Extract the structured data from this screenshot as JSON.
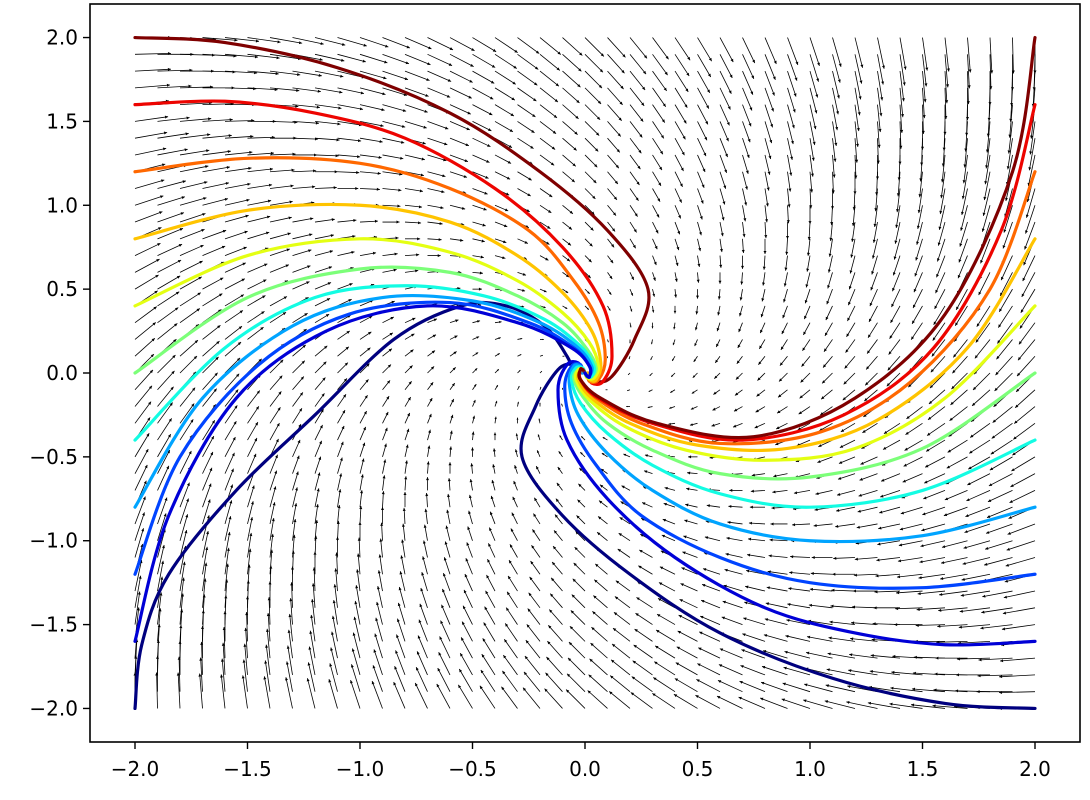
{
  "chart_data": {
    "type": "line",
    "subtype": "vector-field-with-trajectories",
    "title": "",
    "xlabel": "",
    "ylabel": "",
    "xlim": [
      -2.2,
      2.2
    ],
    "ylim": [
      -2.2,
      2.2
    ],
    "x_ticks": [
      -2.0,
      -1.5,
      -1.0,
      -0.5,
      0.0,
      0.5,
      1.0,
      1.5,
      2.0
    ],
    "y_ticks": [
      -2.0,
      -1.5,
      -1.0,
      -0.5,
      0.0,
      0.5,
      1.0,
      1.5,
      2.0
    ],
    "x_tick_labels": [
      "−2.0",
      "−1.5",
      "−1.0",
      "−0.5",
      "0.0",
      "0.5",
      "1.0",
      "1.5",
      "2.0"
    ],
    "y_tick_labels": [
      "−2.0",
      "−1.5",
      "−1.0",
      "−0.5",
      "0.0",
      "0.5",
      "1.0",
      "1.5",
      "2.0"
    ],
    "grid": false,
    "legend": "none",
    "colormap": "jet",
    "quiver": {
      "x_range": [
        -2.0,
        2.0
      ],
      "y_range": [
        -2.0,
        2.0
      ],
      "grid_points": 41,
      "color": "#000000",
      "description_of_field": "spiral sink toward origin, clockwise rotation"
    },
    "series": [
      {
        "start": [
          -2.0,
          -2.0
        ],
        "color": "#00007f",
        "points": [
          [
            -2.0,
            -2.0
          ],
          [
            -1.97,
            -1.62
          ],
          [
            -1.85,
            -1.2
          ],
          [
            -1.55,
            -0.7
          ],
          [
            -1.2,
            -0.25
          ],
          [
            -0.85,
            0.2
          ],
          [
            -0.55,
            0.4
          ],
          [
            -0.35,
            0.4
          ],
          [
            -0.18,
            0.28
          ],
          [
            -0.08,
            0.1
          ],
          [
            -0.05,
            0.0
          ]
        ]
      },
      {
        "start": [
          2.0,
          -2.0
        ],
        "color": "#00007f",
        "points": [
          [
            2.0,
            -2.0
          ],
          [
            1.6,
            -1.97
          ],
          [
            1.1,
            -1.82
          ],
          [
            0.6,
            -1.55
          ],
          [
            0.2,
            -1.2
          ],
          [
            -0.1,
            -0.85
          ],
          [
            -0.28,
            -0.5
          ],
          [
            -0.22,
            -0.2
          ],
          [
            -0.12,
            0.02
          ],
          [
            -0.05,
            0.05
          ],
          [
            -0.02,
            0.0
          ]
        ]
      },
      {
        "start": [
          2.0,
          -1.6
        ],
        "color": "#0000d6",
        "points": [
          [
            2.0,
            -1.6
          ],
          [
            1.6,
            -1.62
          ],
          [
            1.2,
            -1.55
          ],
          [
            0.8,
            -1.4
          ],
          [
            0.4,
            -1.1
          ],
          [
            0.1,
            -0.75
          ],
          [
            -0.08,
            -0.4
          ],
          [
            -0.12,
            -0.1
          ],
          [
            -0.08,
            0.05
          ],
          [
            -0.03,
            0.06
          ],
          [
            -0.01,
            0.0
          ]
        ]
      },
      {
        "start": [
          2.0,
          -1.2
        ],
        "color": "#0044ff",
        "points": [
          [
            2.0,
            -1.2
          ],
          [
            1.5,
            -1.28
          ],
          [
            1.0,
            -1.25
          ],
          [
            0.6,
            -1.1
          ],
          [
            0.25,
            -0.85
          ],
          [
            0.05,
            -0.55
          ],
          [
            -0.06,
            -0.3
          ],
          [
            -0.09,
            -0.08
          ],
          [
            -0.06,
            0.04
          ],
          [
            -0.02,
            0.05
          ],
          [
            -0.01,
            0.0
          ]
        ]
      },
      {
        "start": [
          2.0,
          -0.8
        ],
        "color": "#00a4ff",
        "points": [
          [
            2.0,
            -0.8
          ],
          [
            1.5,
            -0.97
          ],
          [
            1.0,
            -1.0
          ],
          [
            0.6,
            -0.9
          ],
          [
            0.3,
            -0.7
          ],
          [
            0.1,
            -0.48
          ],
          [
            -0.03,
            -0.25
          ],
          [
            -0.07,
            -0.06
          ],
          [
            -0.05,
            0.04
          ],
          [
            -0.02,
            0.04
          ],
          [
            -0.01,
            0.0
          ]
        ]
      },
      {
        "start": [
          2.0,
          -0.4
        ],
        "color": "#13fce3",
        "points": [
          [
            2.0,
            -0.4
          ],
          [
            1.5,
            -0.7
          ],
          [
            1.0,
            -0.8
          ],
          [
            0.6,
            -0.72
          ],
          [
            0.3,
            -0.55
          ],
          [
            0.1,
            -0.36
          ],
          [
            -0.02,
            -0.18
          ],
          [
            -0.06,
            -0.04
          ],
          [
            -0.04,
            0.03
          ],
          [
            -0.01,
            0.03
          ],
          [
            0.0,
            0.0
          ]
        ]
      },
      {
        "start": [
          2.0,
          0.0
        ],
        "color": "#7cff79",
        "points": [
          [
            2.0,
            0.0
          ],
          [
            1.5,
            -0.45
          ],
          [
            1.0,
            -0.62
          ],
          [
            0.6,
            -0.6
          ],
          [
            0.3,
            -0.46
          ],
          [
            0.1,
            -0.3
          ],
          [
            -0.01,
            -0.14
          ],
          [
            -0.05,
            -0.03
          ],
          [
            -0.03,
            0.02
          ],
          [
            -0.01,
            0.02
          ],
          [
            0.0,
            0.0
          ]
        ]
      },
      {
        "start": [
          2.0,
          0.4
        ],
        "color": "#e4ff13",
        "points": [
          [
            2.0,
            0.4
          ],
          [
            1.6,
            -0.15
          ],
          [
            1.2,
            -0.45
          ],
          [
            0.8,
            -0.52
          ],
          [
            0.45,
            -0.46
          ],
          [
            0.18,
            -0.32
          ],
          [
            0.02,
            -0.16
          ],
          [
            -0.04,
            -0.04
          ],
          [
            -0.03,
            0.02
          ],
          [
            -0.01,
            0.02
          ],
          [
            0.0,
            0.0
          ]
        ]
      },
      {
        "start": [
          2.0,
          0.8
        ],
        "color": "#ffc400",
        "points": [
          [
            2.0,
            0.8
          ],
          [
            1.7,
            0.15
          ],
          [
            1.3,
            -0.28
          ],
          [
            0.9,
            -0.45
          ],
          [
            0.5,
            -0.43
          ],
          [
            0.2,
            -0.3
          ],
          [
            0.03,
            -0.15
          ],
          [
            -0.03,
            -0.04
          ],
          [
            -0.02,
            0.02
          ],
          [
            -0.01,
            0.02
          ],
          [
            0.0,
            0.0
          ]
        ]
      },
      {
        "start": [
          2.0,
          1.2
        ],
        "color": "#ff6800",
        "points": [
          [
            2.0,
            1.2
          ],
          [
            1.8,
            0.5
          ],
          [
            1.45,
            -0.05
          ],
          [
            1.05,
            -0.35
          ],
          [
            0.6,
            -0.42
          ],
          [
            0.25,
            -0.3
          ],
          [
            0.05,
            -0.15
          ],
          [
            -0.02,
            -0.04
          ],
          [
            -0.02,
            0.02
          ],
          [
            -0.01,
            0.02
          ],
          [
            0.0,
            0.0
          ]
        ]
      },
      {
        "start": [
          2.0,
          1.6
        ],
        "color": "#ed0400",
        "points": [
          [
            2.0,
            1.6
          ],
          [
            1.85,
            0.85
          ],
          [
            1.55,
            0.15
          ],
          [
            1.15,
            -0.25
          ],
          [
            0.7,
            -0.4
          ],
          [
            0.3,
            -0.3
          ],
          [
            0.06,
            -0.15
          ],
          [
            -0.02,
            -0.04
          ],
          [
            -0.02,
            0.02
          ],
          [
            -0.01,
            0.02
          ],
          [
            0.0,
            0.0
          ]
        ]
      },
      {
        "start": [
          2.0,
          2.0
        ],
        "color": "#7f0000",
        "points": [
          [
            2.0,
            2.0
          ],
          [
            1.9,
            1.2
          ],
          [
            1.6,
            0.35
          ],
          [
            1.2,
            -0.15
          ],
          [
            0.75,
            -0.38
          ],
          [
            0.32,
            -0.3
          ],
          [
            0.07,
            -0.15
          ],
          [
            -0.02,
            -0.04
          ],
          [
            -0.02,
            0.02
          ],
          [
            -0.01,
            0.02
          ],
          [
            0.0,
            0.0
          ]
        ]
      },
      {
        "start": [
          -2.0,
          2.0
        ],
        "color": "#7f0000",
        "points": [
          [
            -2.0,
            2.0
          ],
          [
            -1.6,
            1.97
          ],
          [
            -1.1,
            1.82
          ],
          [
            -0.6,
            1.55
          ],
          [
            -0.2,
            1.2
          ],
          [
            0.1,
            0.85
          ],
          [
            0.28,
            0.5
          ],
          [
            0.22,
            0.2
          ],
          [
            0.12,
            -0.02
          ],
          [
            0.05,
            -0.05
          ],
          [
            0.02,
            0.0
          ]
        ]
      },
      {
        "start": [
          -2.0,
          1.6
        ],
        "color": "#ed0400",
        "points": [
          [
            -2.0,
            1.6
          ],
          [
            -1.6,
            1.62
          ],
          [
            -1.2,
            1.55
          ],
          [
            -0.8,
            1.4
          ],
          [
            -0.4,
            1.1
          ],
          [
            -0.1,
            0.75
          ],
          [
            0.08,
            0.4
          ],
          [
            0.12,
            0.1
          ],
          [
            0.08,
            -0.05
          ],
          [
            0.03,
            -0.06
          ],
          [
            0.01,
            0.0
          ]
        ]
      },
      {
        "start": [
          -2.0,
          1.2
        ],
        "color": "#ff6800",
        "points": [
          [
            -2.0,
            1.2
          ],
          [
            -1.5,
            1.28
          ],
          [
            -1.0,
            1.25
          ],
          [
            -0.6,
            1.1
          ],
          [
            -0.25,
            0.85
          ],
          [
            -0.05,
            0.55
          ],
          [
            0.06,
            0.3
          ],
          [
            0.09,
            0.08
          ],
          [
            0.06,
            -0.04
          ],
          [
            0.02,
            -0.05
          ],
          [
            0.01,
            0.0
          ]
        ]
      },
      {
        "start": [
          -2.0,
          0.8
        ],
        "color": "#ffc400",
        "points": [
          [
            -2.0,
            0.8
          ],
          [
            -1.5,
            0.97
          ],
          [
            -1.0,
            1.0
          ],
          [
            -0.6,
            0.9
          ],
          [
            -0.3,
            0.7
          ],
          [
            -0.1,
            0.48
          ],
          [
            0.03,
            0.25
          ],
          [
            0.07,
            0.06
          ],
          [
            0.05,
            -0.04
          ],
          [
            0.02,
            -0.04
          ],
          [
            0.01,
            0.0
          ]
        ]
      },
      {
        "start": [
          -2.0,
          0.4
        ],
        "color": "#e4ff13",
        "points": [
          [
            -2.0,
            0.4
          ],
          [
            -1.5,
            0.7
          ],
          [
            -1.0,
            0.8
          ],
          [
            -0.6,
            0.72
          ],
          [
            -0.3,
            0.55
          ],
          [
            -0.1,
            0.36
          ],
          [
            0.02,
            0.18
          ],
          [
            0.06,
            0.04
          ],
          [
            0.04,
            -0.03
          ],
          [
            0.01,
            -0.03
          ],
          [
            0.0,
            0.0
          ]
        ]
      },
      {
        "start": [
          -2.0,
          0.0
        ],
        "color": "#7cff79",
        "points": [
          [
            -2.0,
            0.0
          ],
          [
            -1.5,
            0.45
          ],
          [
            -1.0,
            0.62
          ],
          [
            -0.6,
            0.6
          ],
          [
            -0.3,
            0.46
          ],
          [
            -0.1,
            0.3
          ],
          [
            0.01,
            0.14
          ],
          [
            0.05,
            0.03
          ],
          [
            0.03,
            -0.02
          ],
          [
            0.01,
            -0.02
          ],
          [
            0.0,
            0.0
          ]
        ]
      },
      {
        "start": [
          -2.0,
          -0.4
        ],
        "color": "#13fce3",
        "points": [
          [
            -2.0,
            -0.4
          ],
          [
            -1.6,
            0.15
          ],
          [
            -1.2,
            0.45
          ],
          [
            -0.8,
            0.52
          ],
          [
            -0.45,
            0.46
          ],
          [
            -0.18,
            0.32
          ],
          [
            -0.02,
            0.16
          ],
          [
            0.04,
            0.04
          ],
          [
            0.03,
            -0.02
          ],
          [
            0.01,
            -0.02
          ],
          [
            0.0,
            0.0
          ]
        ]
      },
      {
        "start": [
          -2.0,
          -0.8
        ],
        "color": "#00a4ff",
        "points": [
          [
            -2.0,
            -0.8
          ],
          [
            -1.7,
            -0.15
          ],
          [
            -1.3,
            0.28
          ],
          [
            -0.9,
            0.45
          ],
          [
            -0.5,
            0.43
          ],
          [
            -0.2,
            0.3
          ],
          [
            -0.03,
            0.15
          ],
          [
            0.03,
            0.04
          ],
          [
            0.02,
            -0.02
          ],
          [
            0.01,
            -0.02
          ],
          [
            0.0,
            0.0
          ]
        ]
      },
      {
        "start": [
          -2.0,
          -1.2
        ],
        "color": "#0044ff",
        "points": [
          [
            -2.0,
            -1.2
          ],
          [
            -1.8,
            -0.5
          ],
          [
            -1.45,
            0.05
          ],
          [
            -1.05,
            0.35
          ],
          [
            -0.6,
            0.42
          ],
          [
            -0.25,
            0.3
          ],
          [
            -0.05,
            0.15
          ],
          [
            0.02,
            0.04
          ],
          [
            0.02,
            -0.02
          ],
          [
            0.01,
            -0.02
          ],
          [
            0.0,
            0.0
          ]
        ]
      },
      {
        "start": [
          -2.0,
          -1.6
        ],
        "color": "#0000d6",
        "points": [
          [
            -2.0,
            -1.6
          ],
          [
            -1.85,
            -0.85
          ],
          [
            -1.55,
            -0.15
          ],
          [
            -1.15,
            0.25
          ],
          [
            -0.7,
            0.4
          ],
          [
            -0.3,
            0.3
          ],
          [
            -0.06,
            0.15
          ],
          [
            0.02,
            0.04
          ],
          [
            0.02,
            -0.02
          ],
          [
            0.01,
            -0.02
          ],
          [
            0.0,
            0.0
          ]
        ]
      }
    ]
  }
}
